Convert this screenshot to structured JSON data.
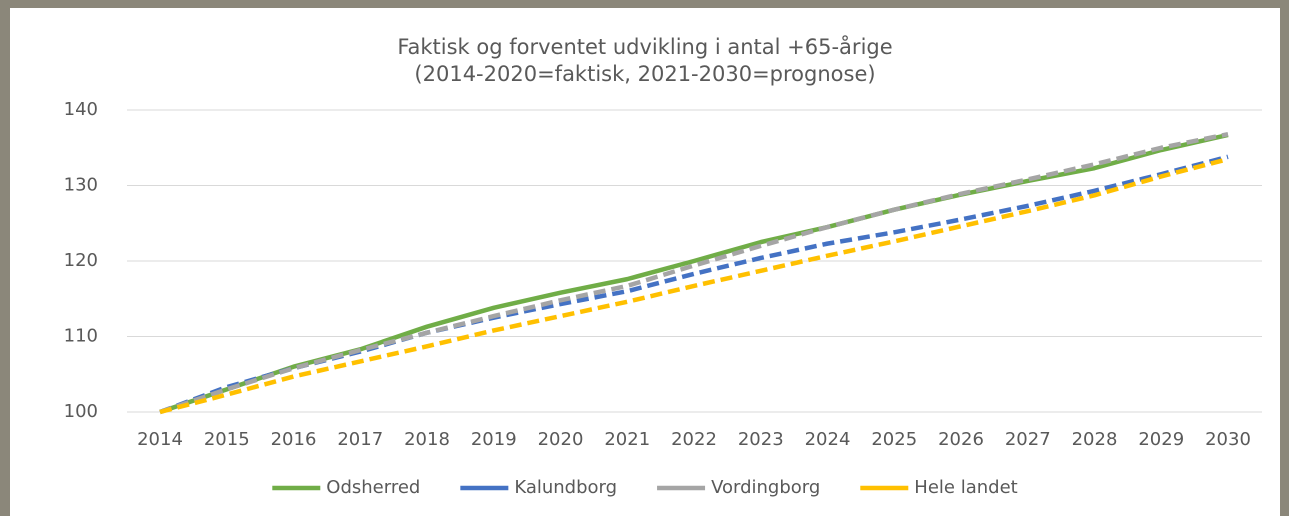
{
  "chart_data": {
    "type": "line",
    "title": "Faktisk og forventet udvikling i antal +65-årige",
    "subtitle": "(2014-2020=faktisk, 2021-2030=prognose)",
    "categories": [
      "2014",
      "2015",
      "2016",
      "2017",
      "2018",
      "2019",
      "2020",
      "2021",
      "2022",
      "2023",
      "2024",
      "2025",
      "2026",
      "2027",
      "2028",
      "2029",
      "2030"
    ],
    "series": [
      {
        "name": "Odsherred",
        "color": "#70ad47",
        "dashed": false,
        "values": [
          100,
          103,
          106,
          108.3,
          111.3,
          113.8,
          115.8,
          117.6,
          120,
          122.5,
          124.5,
          126.8,
          128.8,
          130.6,
          132.3,
          134.7,
          136.7
        ]
      },
      {
        "name": "Kalundborg",
        "color": "#4472c4",
        "dashed": true,
        "values": [
          100,
          103.3,
          105.8,
          108,
          110.5,
          112.5,
          114.3,
          116,
          118.3,
          120.4,
          122.3,
          123.8,
          125.5,
          127.3,
          129.3,
          131.5,
          133.8
        ]
      },
      {
        "name": "Vordingborg",
        "color": "#a5a5a5",
        "dashed": true,
        "values": [
          100,
          103,
          105.8,
          108.2,
          110.5,
          112.7,
          114.8,
          116.7,
          119.4,
          122,
          124.5,
          126.8,
          128.9,
          130.8,
          132.8,
          135,
          136.8
        ]
      },
      {
        "name": "Hele landet",
        "color": "#ffc000",
        "dashed": true,
        "values": [
          100,
          102.3,
          104.7,
          106.7,
          108.7,
          110.8,
          112.7,
          114.6,
          116.7,
          118.7,
          120.7,
          122.6,
          124.6,
          126.6,
          128.7,
          131.2,
          133.5
        ]
      }
    ],
    "ylim": [
      100,
      140
    ],
    "yticks": [
      100,
      110,
      120,
      130,
      140
    ],
    "grid": true,
    "legend": "bottom"
  }
}
